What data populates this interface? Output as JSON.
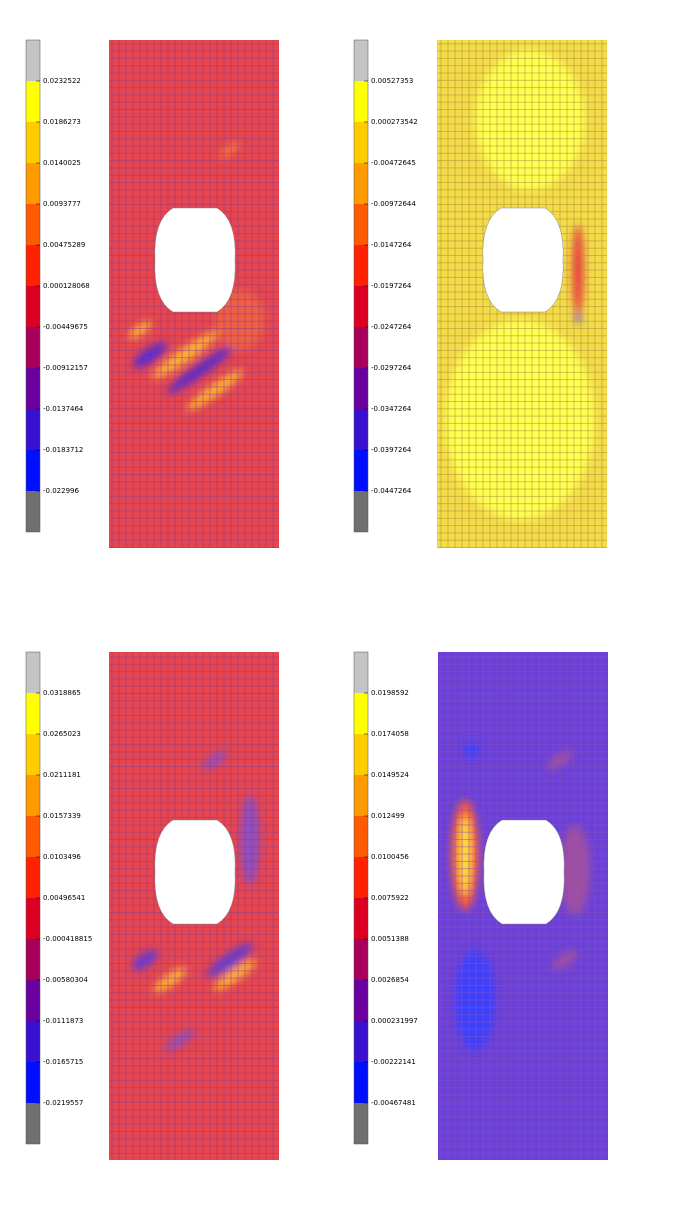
{
  "panels": [
    {
      "labels": [
        "0.0232522",
        "0.0186273",
        "0.0140025",
        "0.0093777",
        "0.00475289",
        "0.000128068",
        "-0.00449675",
        "-0.00912157",
        "-0.0137464",
        "-0.0183712",
        "-0.022996"
      ]
    },
    {
      "labels": [
        "0.00527353",
        "0.000273542",
        "-0.00472645",
        "-0.00972644",
        "-0.0147264",
        "-0.0197264",
        "-0.0247264",
        "-0.0297264",
        "-0.0347264",
        "-0.0397264",
        "-0.0447264"
      ]
    },
    {
      "labels": [
        "0.0318865",
        "0.0265023",
        "0.0211181",
        "0.0157339",
        "0.0103496",
        "0.00496541",
        "-0.000418815",
        "-0.00580304",
        "-0.0111873",
        "-0.0165715",
        "-0.0219557"
      ]
    },
    {
      "labels": [
        "0.0198592",
        "0.0174058",
        "0.0149524",
        "0.012499",
        "0.0100456",
        "0.0075922",
        "0.0051388",
        "0.0026854",
        "0.000231997",
        "-0.00222141",
        "-0.00467481"
      ]
    }
  ]
}
